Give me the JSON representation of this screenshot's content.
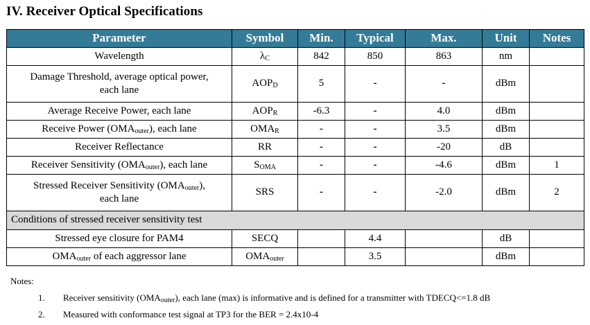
{
  "section_title": "IV. Receiver Optical Specifications",
  "headers": [
    "Parameter",
    "Symbol",
    "Min.",
    "Typical",
    "Max.",
    "Unit",
    "Notes"
  ],
  "rows": [
    {
      "param": "Wavelength",
      "sym": "λ",
      "sym_sub": "C",
      "min": "842",
      "typ": "850",
      "max": "863",
      "unit": "nm",
      "notes": ""
    },
    {
      "param_line1": "Damage Threshold, average optical power,",
      "param_line2": "each lane",
      "sym": "AOP",
      "sym_sub": "D",
      "min": "5",
      "typ": "-",
      "max": "-",
      "unit": "dBm",
      "notes": ""
    },
    {
      "param": "Average Receive Power, each lane",
      "sym": "AOP",
      "sym_sub": "R",
      "min": "-6.3",
      "typ": "-",
      "max": "4.0",
      "unit": "dBm",
      "notes": ""
    },
    {
      "param_pre": "Receive Power (OMA",
      "param_sub": "outer",
      "param_post": "), each lane",
      "sym": "OMA",
      "sym_sub": "R",
      "min": "-",
      "typ": "-",
      "max": "3.5",
      "unit": "dBm",
      "notes": ""
    },
    {
      "param": "Receiver Reflectance",
      "sym": "RR",
      "min": "-",
      "typ": "-",
      "max": "-20",
      "unit": "dB",
      "notes": ""
    },
    {
      "param_pre": "Receiver Sensitivity (OMA",
      "param_sub": "outer",
      "param_post": "), each lane",
      "sym": "S",
      "sym_sub": "OMA",
      "min": "-",
      "typ": "-",
      "max": "-4.6",
      "unit": "dBm",
      "notes": "1"
    },
    {
      "param_pre": "Stressed Receiver Sensitivity (OMA",
      "param_sub": "outer",
      "param_post": "),",
      "param_line2": "each lane",
      "sym": "SRS",
      "min": "-",
      "typ": "-",
      "max": "-2.0",
      "unit": "dBm",
      "notes": "2"
    }
  ],
  "conditions_title": "Conditions of stressed receiver sensitivity test",
  "cond_rows": [
    {
      "param": "Stressed eye closure for PAM4",
      "sym": "SECQ",
      "typ": "4.4",
      "unit": "dB"
    },
    {
      "param_pre": "OMA",
      "param_sub": "outer",
      "param_post": " of each aggressor lane",
      "sym": "OMA",
      "sym_sub": "outer",
      "typ": "3.5",
      "unit": "dBm"
    }
  ],
  "notes_label": "Notes:",
  "notes": [
    {
      "num": "1.",
      "pre": "Receiver sensitivity (OMA",
      "sub": "outer",
      "post": "), each lane (max) is informative and is defined for a transmitter with TDECQ<=1.8 dB"
    },
    {
      "num": "2.",
      "text": "Measured with conformance test signal at TP3 for the BER = 2.4x10-4"
    }
  ]
}
